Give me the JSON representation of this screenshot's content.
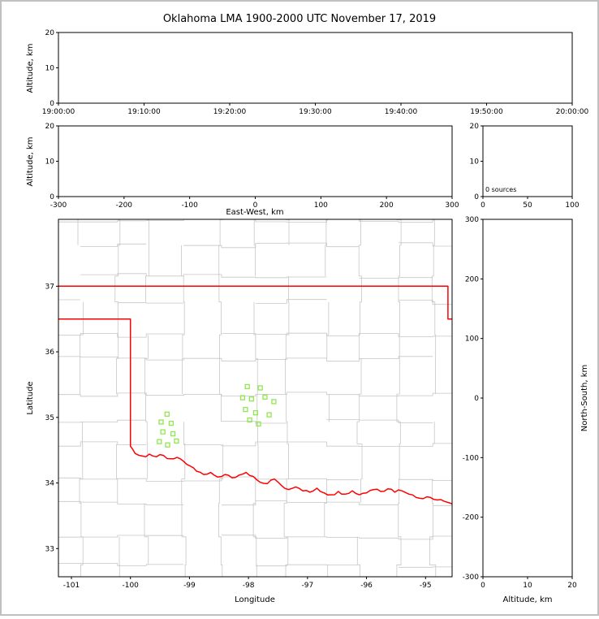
{
  "title": "Oklahoma LMA 1900-2000 UTC November 17, 2019",
  "colors": {
    "background": "#ffffff",
    "frame": "#c0c0c0",
    "axis": "#000000",
    "county_lines": "#c6c6c6",
    "state_border": "#ff0000",
    "stations": "#8fe84f"
  },
  "chart_data": [
    {
      "panel": "time-altitude",
      "type": "scatter",
      "xlabel": "",
      "ylabel": "Altitude, km",
      "x_ticks": [
        "19:00:00",
        "19:10:00",
        "19:20:00",
        "19:30:00",
        "19:40:00",
        "19:50:00",
        "20:00:00"
      ],
      "y_ticks": [
        0,
        10,
        20
      ],
      "ylim": [
        0,
        20
      ],
      "points": []
    },
    {
      "panel": "east-west-altitude",
      "type": "scatter",
      "xlabel": "East-West, km",
      "ylabel": "Altitude, km",
      "x_ticks": [
        -300,
        -200,
        -100,
        0,
        100,
        200,
        300
      ],
      "xlim": [
        -300,
        300
      ],
      "y_ticks": [
        0,
        10,
        20
      ],
      "ylim": [
        0,
        20
      ],
      "points": []
    },
    {
      "panel": "altitude-source-histogram",
      "type": "histogram",
      "annotation": "0 sources",
      "x_ticks": [
        0,
        50,
        100
      ],
      "xlim": [
        0,
        100
      ],
      "y_ticks": [
        0,
        10,
        20
      ],
      "ylim": [
        0,
        20
      ],
      "points": []
    },
    {
      "panel": "plan-view-map",
      "type": "scatter",
      "xlabel": "Longitude",
      "ylabel": "Latitude",
      "x_ticks": [
        -101,
        -100,
        -99,
        -98,
        -97,
        -96,
        -95
      ],
      "xlim": [
        -101.22,
        -94.55
      ],
      "y_ticks": [
        33,
        34,
        35,
        36,
        37
      ],
      "ylim": [
        32.57,
        38.02
      ],
      "station_markers_lon_lat": [
        [
          -98.02,
          35.47
        ],
        [
          -97.8,
          35.45
        ],
        [
          -98.1,
          35.3
        ],
        [
          -97.95,
          35.28
        ],
        [
          -97.72,
          35.31
        ],
        [
          -97.57,
          35.24
        ],
        [
          -98.05,
          35.12
        ],
        [
          -97.88,
          35.07
        ],
        [
          -97.65,
          35.04
        ],
        [
          -97.98,
          34.96
        ],
        [
          -97.83,
          34.9
        ],
        [
          -99.38,
          35.05
        ],
        [
          -99.48,
          34.93
        ],
        [
          -99.31,
          34.91
        ],
        [
          -99.45,
          34.78
        ],
        [
          -99.28,
          34.75
        ],
        [
          -99.51,
          34.63
        ],
        [
          -99.37,
          34.58
        ],
        [
          -99.22,
          34.64
        ]
      ],
      "points": []
    },
    {
      "panel": "north-south-altitude",
      "type": "scatter",
      "xlabel": "Altitude, km",
      "ylabel": "North-South, km",
      "x_ticks": [
        0,
        10,
        20
      ],
      "xlim": [
        0,
        20
      ],
      "y_ticks": [
        -300,
        -200,
        -100,
        0,
        100,
        200,
        300
      ],
      "ylim": [
        -300,
        300
      ],
      "points": []
    }
  ],
  "map_geometry": {
    "kansas_border_lat": 37.0,
    "panhandle_south_lat": 36.5,
    "meridian_100w": -100.0,
    "missouri_corner_lon": -94.62,
    "red_river_lon_lat": [
      [
        -100.0,
        34.56
      ],
      [
        -99.92,
        34.45
      ],
      [
        -99.8,
        34.41
      ],
      [
        -99.68,
        34.44
      ],
      [
        -99.56,
        34.4
      ],
      [
        -99.44,
        34.42
      ],
      [
        -99.32,
        34.37
      ],
      [
        -99.21,
        34.39
      ],
      [
        -99.1,
        34.33
      ],
      [
        -98.99,
        34.26
      ],
      [
        -98.88,
        34.18
      ],
      [
        -98.76,
        34.13
      ],
      [
        -98.64,
        34.16
      ],
      [
        -98.52,
        34.09
      ],
      [
        -98.4,
        34.13
      ],
      [
        -98.28,
        34.08
      ],
      [
        -98.16,
        34.12
      ],
      [
        -98.04,
        34.16
      ],
      [
        -97.92,
        34.1
      ],
      [
        -97.8,
        34.01
      ],
      [
        -97.68,
        33.99
      ],
      [
        -97.56,
        34.06
      ],
      [
        -97.44,
        33.96
      ],
      [
        -97.32,
        33.9
      ],
      [
        -97.2,
        33.94
      ],
      [
        -97.08,
        33.88
      ],
      [
        -96.96,
        33.86
      ],
      [
        -96.84,
        33.92
      ],
      [
        -96.72,
        33.85
      ],
      [
        -96.6,
        33.82
      ],
      [
        -96.48,
        33.87
      ],
      [
        -96.36,
        33.83
      ],
      [
        -96.24,
        33.88
      ],
      [
        -96.12,
        33.82
      ],
      [
        -96.0,
        33.85
      ],
      [
        -95.88,
        33.9
      ],
      [
        -95.76,
        33.87
      ],
      [
        -95.64,
        33.91
      ],
      [
        -95.52,
        33.86
      ],
      [
        -95.4,
        33.88
      ],
      [
        -95.28,
        33.83
      ],
      [
        -95.16,
        33.78
      ],
      [
        -95.04,
        33.76
      ],
      [
        -94.92,
        33.78
      ],
      [
        -94.8,
        33.74
      ],
      [
        -94.68,
        33.72
      ],
      [
        -94.5,
        33.66
      ]
    ]
  }
}
